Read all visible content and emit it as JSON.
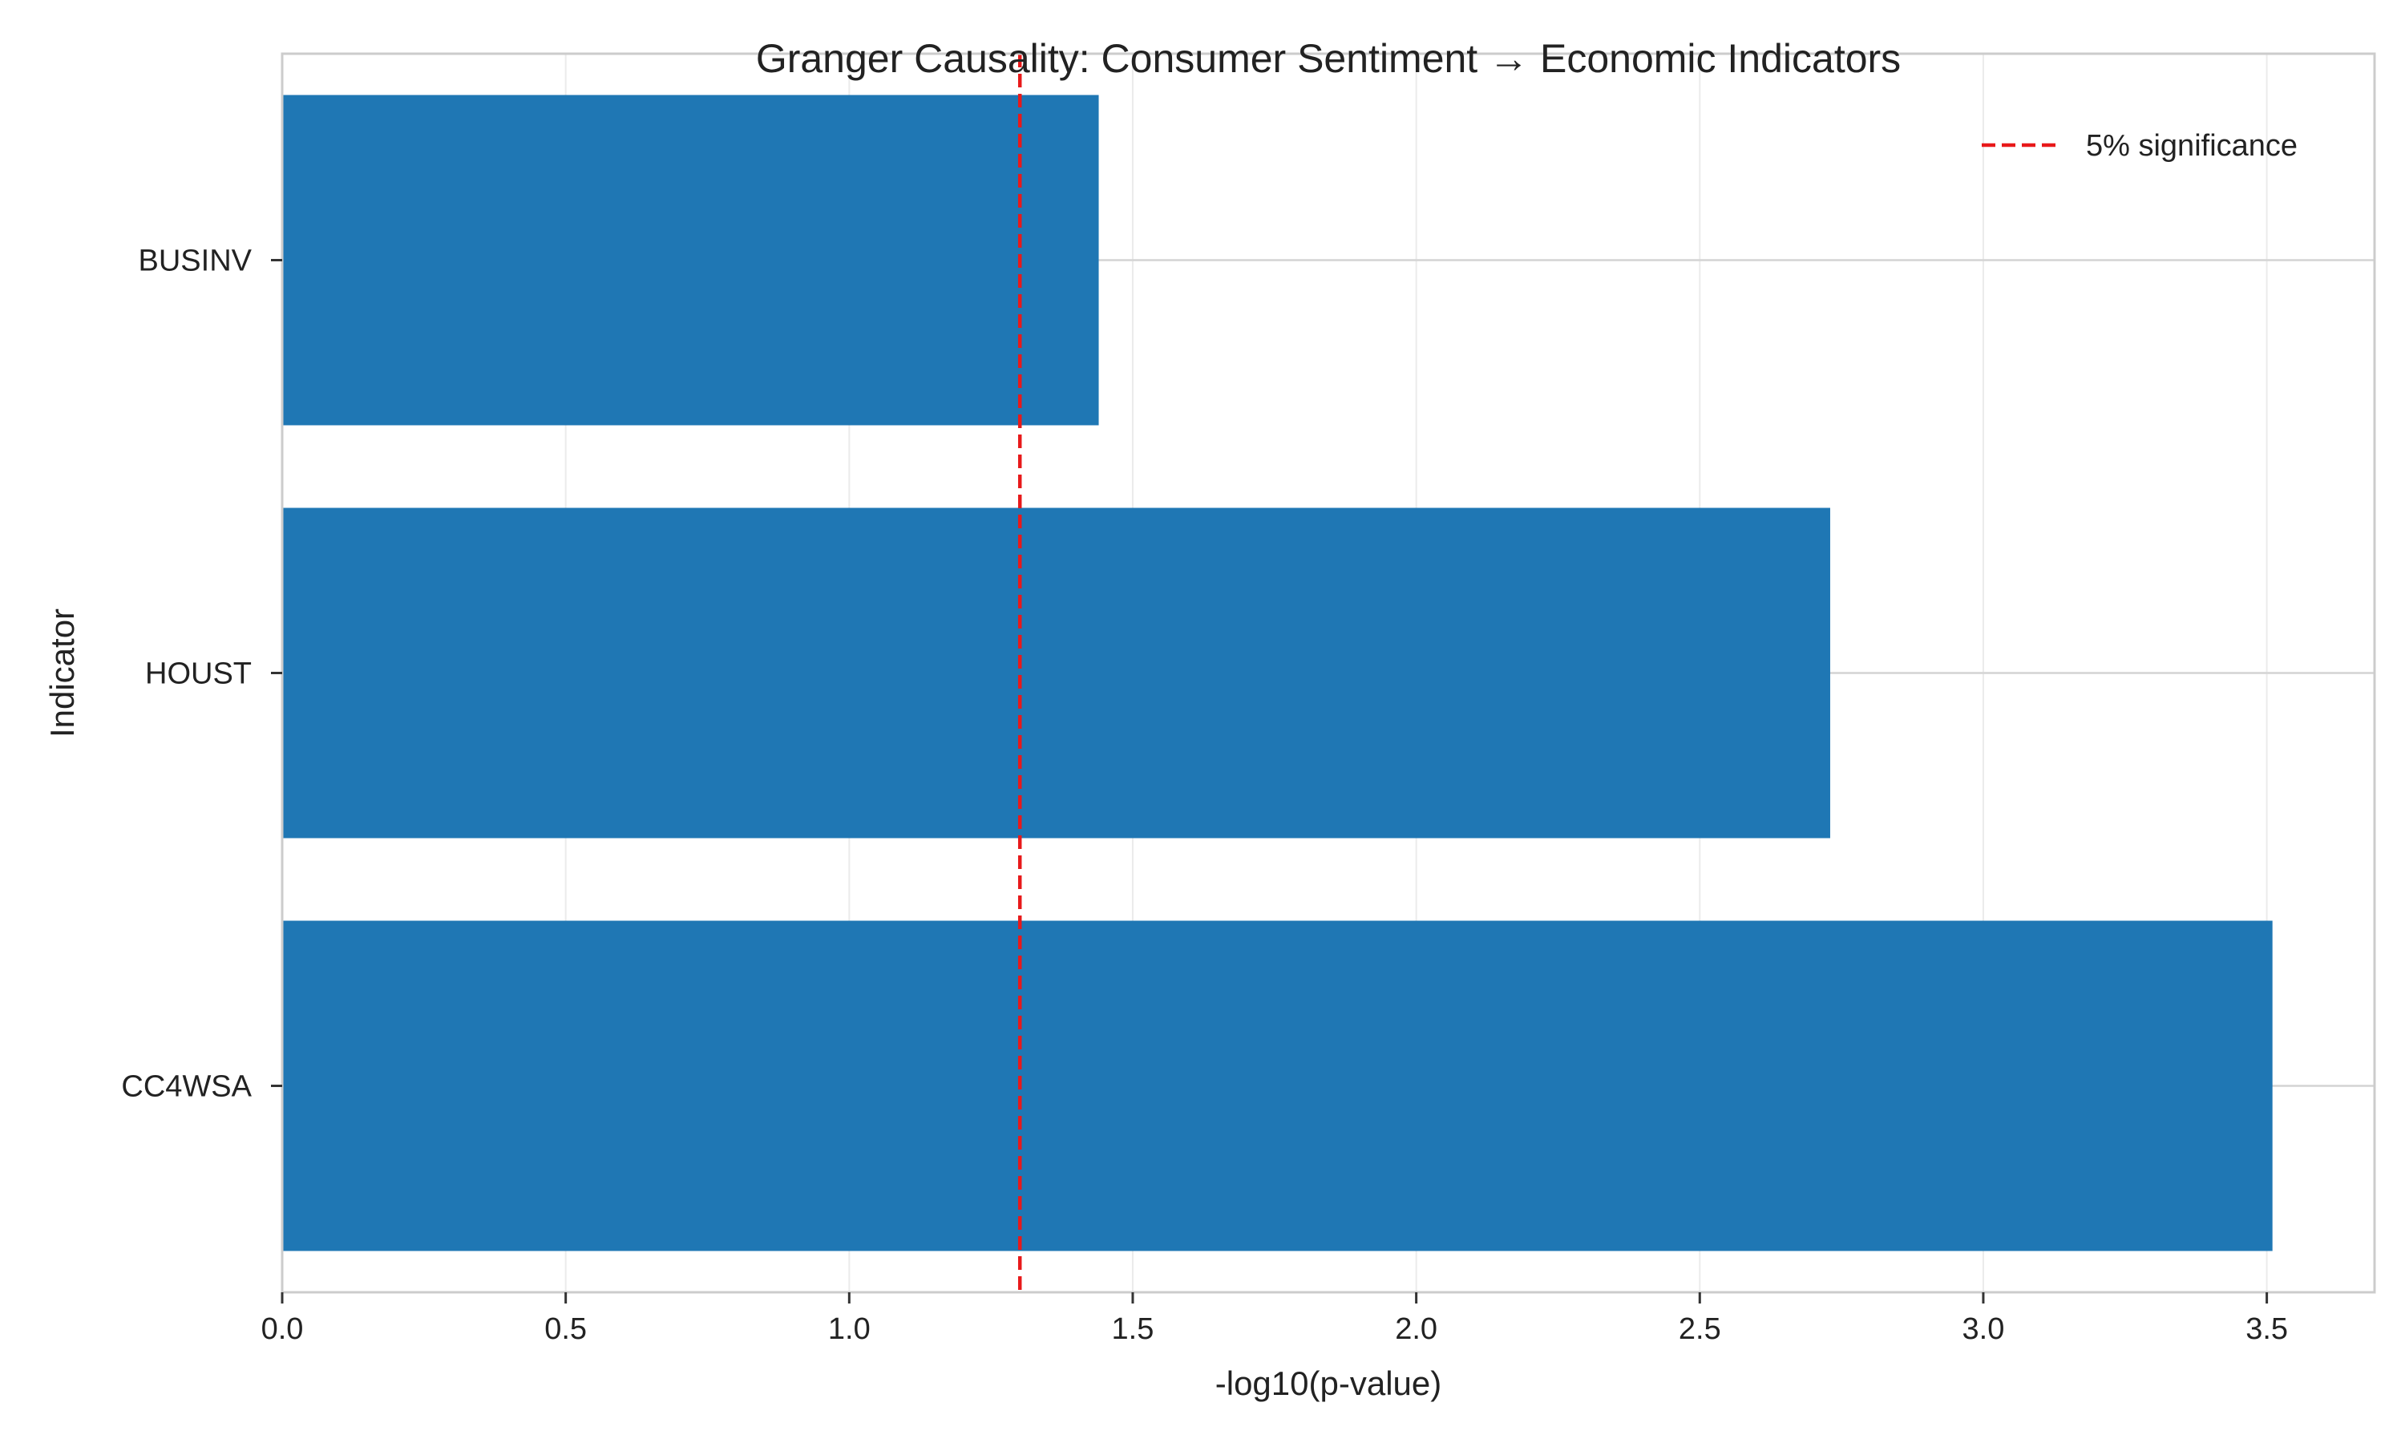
{
  "chart_data": {
    "type": "bar",
    "orientation": "horizontal",
    "title": "Granger Causality: Consumer Sentiment → Economic Indicators",
    "xlabel": "-log10(p-value)",
    "ylabel": "Indicator",
    "categories": [
      "BUSINV",
      "HOUST",
      "CC4WSA"
    ],
    "values": [
      1.44,
      2.73,
      3.51
    ],
    "xlim": [
      0,
      3.69
    ],
    "xticks": [
      0.0,
      0.5,
      1.0,
      1.5,
      2.0,
      2.5,
      3.0,
      3.5
    ],
    "xtick_labels": [
      "0.0",
      "0.5",
      "1.0",
      "1.5",
      "2.0",
      "2.5",
      "3.0",
      "3.5"
    ],
    "grid": true,
    "bar_color": "#1f77b4",
    "reference_line": {
      "value": 1.301,
      "label": "5% significance",
      "color": "#e8191a",
      "style": "dashed"
    },
    "legend_position": "top-right"
  }
}
